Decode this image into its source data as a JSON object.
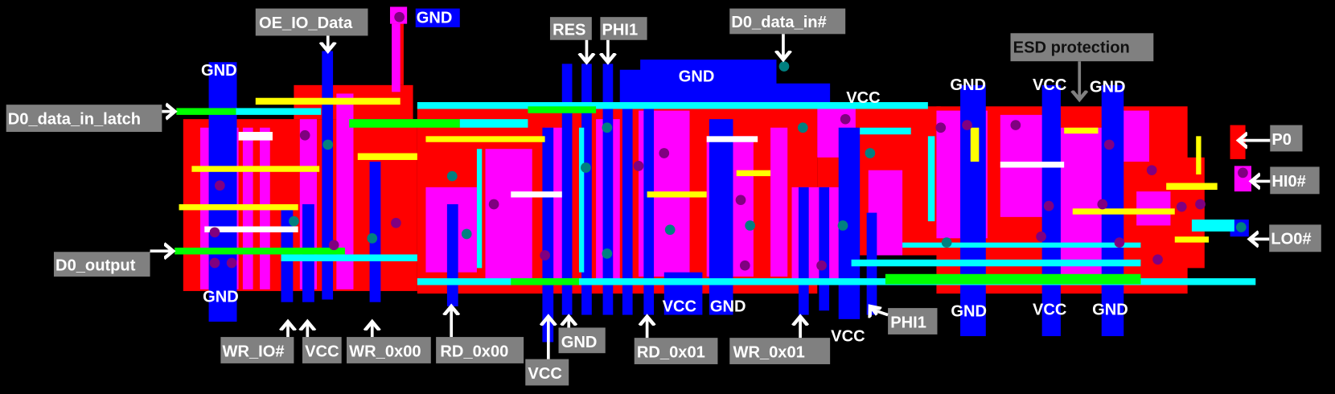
{
  "diagram": {
    "colors": {
      "background": "#000000",
      "diffusion": "#ff0000",
      "polysilicon_overlap": "#ff00ff",
      "metal": "#0000ff",
      "poly": "#00ffff",
      "buried": "#00ff00",
      "wire_highlight": "#ffff00",
      "via": "#800080",
      "contact": "#008080",
      "label_box": "#808080"
    },
    "labels": {
      "oe_io_data": "OE_IO_Data",
      "gnd_top_pad": "GND",
      "gnd_left_top": "GND",
      "d0_data_in_latch": "D0_data_in_latch",
      "d0_output": "D0_output",
      "gnd_left_bottom": "GND",
      "wr_io": "WR_IO#",
      "vcc_1": "VCC",
      "wr_0x00": "WR_0x00",
      "rd_0x00": "RD_0x00",
      "vcc_2": "VCC",
      "gnd_2": "GND",
      "res": "RES",
      "phi1_top": "PHI1",
      "gnd_center": "GND",
      "d0_data_in": "D0_data_in#",
      "vcc_top_mid": "VCC",
      "rd_0x01": "RD_0x01",
      "vcc_3": "VCC",
      "gnd_3": "GND",
      "wr_0x01": "WR_0x01",
      "vcc_4": "VCC",
      "phi1_bottom": "PHI1",
      "esd_protection": "ESD protection",
      "gnd_r1_top": "GND",
      "vcc_r_top": "VCC",
      "gnd_r2_top": "GND",
      "gnd_r1_bottom": "GND",
      "vcc_r_bottom": "VCC",
      "gnd_r2_bottom": "GND",
      "p0": "P0",
      "hi0": "HI0#",
      "lo0": "LO0#"
    }
  }
}
